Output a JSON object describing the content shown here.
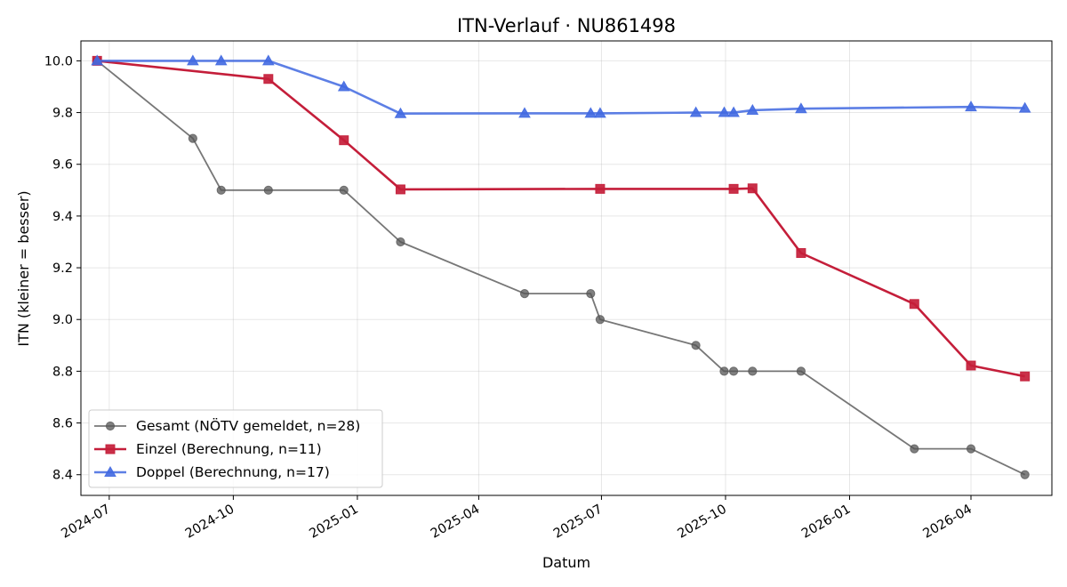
{
  "chart_data": {
    "type": "line",
    "title": "ITN-Verlauf · NU861498",
    "xlabel": "Datum",
    "ylabel": "ITN  (kleiner = besser)",
    "xlim": [
      "2024-06-10",
      "2026-05-31"
    ],
    "ylim": [
      8.32,
      10.077
    ],
    "x_ticks": [
      "2024-07-01",
      "2024-10-01",
      "2025-01-01",
      "2025-04-01",
      "2025-07-01",
      "2025-10-01",
      "2026-01-01",
      "2026-04-01"
    ],
    "x_tick_labels": [
      "2024-07",
      "2024-10",
      "2025-01",
      "2025-04",
      "2025-07",
      "2025-10",
      "2026-01",
      "2026-04"
    ],
    "y_ticks": [
      8.4,
      8.6,
      8.8,
      9.0,
      9.2,
      9.4,
      9.6,
      9.8,
      10.0
    ],
    "y_tick_labels": [
      "8.4",
      "8.6",
      "8.8",
      "9.0",
      "9.2",
      "9.4",
      "9.6",
      "9.8",
      "10.0"
    ],
    "grid": true,
    "legend_position": "lower-left",
    "series": [
      {
        "name": "Gesamt (NÖTV gemeldet, n=28)",
        "color": "#555555",
        "marker": "circle",
        "points": [
          [
            "2024-06-22",
            10.0
          ],
          [
            "2024-09-01",
            9.7
          ],
          [
            "2024-09-22",
            9.5
          ],
          [
            "2024-10-27",
            9.5
          ],
          [
            "2024-12-22",
            9.5
          ],
          [
            "2025-02-02",
            9.3
          ],
          [
            "2025-05-05",
            9.1
          ],
          [
            "2025-06-23",
            9.1
          ],
          [
            "2025-06-30",
            9.0
          ],
          [
            "2025-09-09",
            8.9
          ],
          [
            "2025-09-30",
            8.8
          ],
          [
            "2025-10-07",
            8.8
          ],
          [
            "2025-10-21",
            8.8
          ],
          [
            "2025-11-26",
            8.8
          ],
          [
            "2026-02-18",
            8.5
          ],
          [
            "2026-04-01",
            8.5
          ],
          [
            "2026-05-11",
            8.4
          ]
        ]
      },
      {
        "name": "Einzel (Berechnung, n=11)",
        "color": "#c41e3a",
        "marker": "square",
        "points": [
          [
            "2024-06-22",
            10.0
          ],
          [
            "2024-10-27",
            9.93
          ],
          [
            "2024-12-22",
            9.693
          ],
          [
            "2025-02-02",
            9.503
          ],
          [
            "2025-06-30",
            9.505
          ],
          [
            "2025-10-07",
            9.505
          ],
          [
            "2025-10-21",
            9.507
          ],
          [
            "2025-11-26",
            9.257
          ],
          [
            "2026-02-18",
            9.06
          ],
          [
            "2026-04-01",
            8.822
          ],
          [
            "2026-05-11",
            8.78
          ]
        ]
      },
      {
        "name": "Doppel (Berechnung, n=17)",
        "color": "#4169e1",
        "marker": "triangle",
        "points": [
          [
            "2024-06-22",
            10.0
          ],
          [
            "2024-09-01",
            10.0
          ],
          [
            "2024-09-22",
            10.0
          ],
          [
            "2024-10-27",
            10.0
          ],
          [
            "2024-12-22",
            9.9
          ],
          [
            "2025-02-02",
            9.796
          ],
          [
            "2025-05-05",
            9.797
          ],
          [
            "2025-06-23",
            9.797
          ],
          [
            "2025-06-30",
            9.797
          ],
          [
            "2025-09-09",
            9.8
          ],
          [
            "2025-09-30",
            9.8
          ],
          [
            "2025-10-07",
            9.8
          ],
          [
            "2025-10-21",
            9.809
          ],
          [
            "2025-11-26",
            9.815
          ],
          [
            "2026-04-01",
            9.822
          ],
          [
            "2026-05-11",
            9.817
          ]
        ]
      }
    ]
  }
}
